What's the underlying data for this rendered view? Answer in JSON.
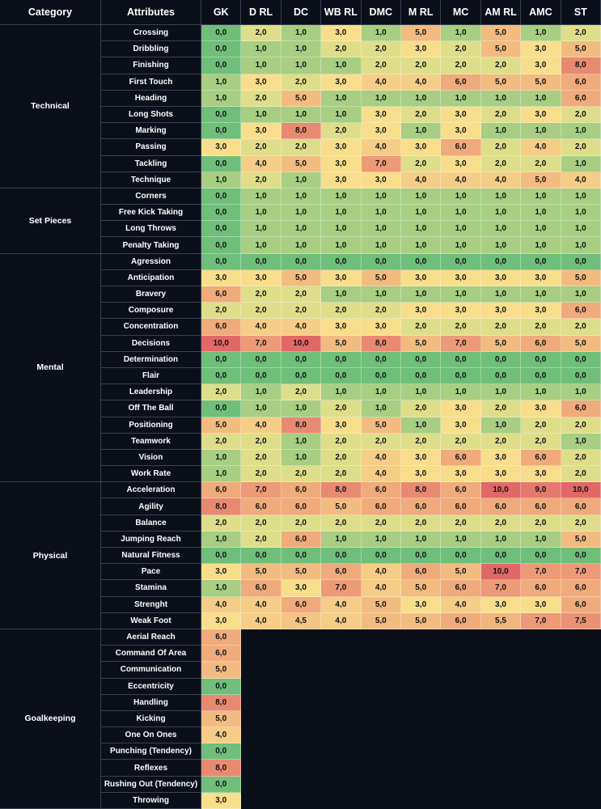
{
  "header": [
    "Category",
    "Attributes",
    "GK",
    "D RL",
    "DC",
    "WB RL",
    "DMC",
    "M RL",
    "MC",
    "AM RL",
    "AMC",
    "ST"
  ],
  "groups": [
    {
      "category": "Technical",
      "rows": [
        {
          "attribute": "Crossing",
          "values": [
            "0,0",
            "2,0",
            "1,0",
            "3,0",
            "1,0",
            "5,0",
            "1,0",
            "5,0",
            "1,0",
            "2,0"
          ]
        },
        {
          "attribute": "Dribbling",
          "values": [
            "0,0",
            "1,0",
            "1,0",
            "2,0",
            "2,0",
            "3,0",
            "2,0",
            "5,0",
            "3,0",
            "5,0"
          ]
        },
        {
          "attribute": "Finishing",
          "values": [
            "0,0",
            "1,0",
            "1,0",
            "1,0",
            "2,0",
            "2,0",
            "2,0",
            "2,0",
            "3,0",
            "8,0"
          ]
        },
        {
          "attribute": "First Touch",
          "values": [
            "1,0",
            "3,0",
            "2,0",
            "3,0",
            "4,0",
            "4,0",
            "6,0",
            "5,0",
            "5,0",
            "6,0"
          ]
        },
        {
          "attribute": "Heading",
          "values": [
            "1,0",
            "2,0",
            "5,0",
            "1,0",
            "1,0",
            "1,0",
            "1,0",
            "1,0",
            "1,0",
            "6,0"
          ]
        },
        {
          "attribute": "Long Shots",
          "values": [
            "0,0",
            "1,0",
            "1,0",
            "1,0",
            "3,0",
            "2,0",
            "3,0",
            "2,0",
            "3,0",
            "2,0"
          ]
        },
        {
          "attribute": "Marking",
          "values": [
            "0,0",
            "3,0",
            "8,0",
            "2,0",
            "3,0",
            "1,0",
            "3,0",
            "1,0",
            "1,0",
            "1,0"
          ]
        },
        {
          "attribute": "Passing",
          "values": [
            "3,0",
            "2,0",
            "2,0",
            "3,0",
            "4,0",
            "3,0",
            "6,0",
            "2,0",
            "4,0",
            "2,0"
          ]
        },
        {
          "attribute": "Tackling",
          "values": [
            "0,0",
            "4,0",
            "5,0",
            "3,0",
            "7,0",
            "2,0",
            "3,0",
            "2,0",
            "2,0",
            "1,0"
          ]
        },
        {
          "attribute": "Technique",
          "values": [
            "1,0",
            "2,0",
            "1,0",
            "3,0",
            "3,0",
            "4,0",
            "4,0",
            "4,0",
            "5,0",
            "4,0"
          ]
        }
      ]
    },
    {
      "category": "Set Pieces",
      "rows": [
        {
          "attribute": "Corners",
          "values": [
            "0,0",
            "1,0",
            "1,0",
            "1,0",
            "1,0",
            "1,0",
            "1,0",
            "1,0",
            "1,0",
            "1,0"
          ]
        },
        {
          "attribute": "Free Kick Taking",
          "values": [
            "0,0",
            "1,0",
            "1,0",
            "1,0",
            "1,0",
            "1,0",
            "1,0",
            "1,0",
            "1,0",
            "1,0"
          ]
        },
        {
          "attribute": "Long Throws",
          "values": [
            "0,0",
            "1,0",
            "1,0",
            "1,0",
            "1,0",
            "1,0",
            "1,0",
            "1,0",
            "1,0",
            "1,0"
          ]
        },
        {
          "attribute": "Penalty Taking",
          "values": [
            "0,0",
            "1,0",
            "1,0",
            "1,0",
            "1,0",
            "1,0",
            "1,0",
            "1,0",
            "1,0",
            "1,0"
          ]
        }
      ]
    },
    {
      "category": "Mental",
      "rows": [
        {
          "attribute": "Agression",
          "values": [
            "0,0",
            "0,0",
            "0,0",
            "0,0",
            "0,0",
            "0,0",
            "0,0",
            "0,0",
            "0,0",
            "0,0"
          ]
        },
        {
          "attribute": "Anticipation",
          "values": [
            "3,0",
            "3,0",
            "5,0",
            "3,0",
            "5,0",
            "3,0",
            "3,0",
            "3,0",
            "3,0",
            "5,0"
          ]
        },
        {
          "attribute": "Bravery",
          "values": [
            "6,0",
            "2,0",
            "2,0",
            "1,0",
            "1,0",
            "1,0",
            "1,0",
            "1,0",
            "1,0",
            "1,0"
          ]
        },
        {
          "attribute": "Composure",
          "values": [
            "2,0",
            "2,0",
            "2,0",
            "2,0",
            "2,0",
            "3,0",
            "3,0",
            "3,0",
            "3,0",
            "6,0"
          ]
        },
        {
          "attribute": "Concentration",
          "values": [
            "6,0",
            "4,0",
            "4,0",
            "3,0",
            "3,0",
            "2,0",
            "2,0",
            "2,0",
            "2,0",
            "2,0"
          ]
        },
        {
          "attribute": "Decisions",
          "values": [
            "10,0",
            "7,0",
            "10,0",
            "5,0",
            "8,0",
            "5,0",
            "7,0",
            "5,0",
            "6,0",
            "5,0"
          ]
        },
        {
          "attribute": "Determination",
          "values": [
            "0,0",
            "0,0",
            "0,0",
            "0,0",
            "0,0",
            "0,0",
            "0,0",
            "0,0",
            "0,0",
            "0,0"
          ]
        },
        {
          "attribute": "Flair",
          "values": [
            "0,0",
            "0,0",
            "0,0",
            "0,0",
            "0,0",
            "0,0",
            "0,0",
            "0,0",
            "0,0",
            "0,0"
          ]
        },
        {
          "attribute": "Leadership",
          "values": [
            "2,0",
            "1,0",
            "2,0",
            "1,0",
            "1,0",
            "1,0",
            "1,0",
            "1,0",
            "1,0",
            "1,0"
          ]
        },
        {
          "attribute": "Off The Ball",
          "values": [
            "0,0",
            "1,0",
            "1,0",
            "2,0",
            "1,0",
            "2,0",
            "3,0",
            "2,0",
            "3,0",
            "6,0"
          ]
        },
        {
          "attribute": "Positioning",
          "values": [
            "5,0",
            "4,0",
            "8,0",
            "3,0",
            "5,0",
            "1,0",
            "3,0",
            "1,0",
            "2,0",
            "2,0"
          ]
        },
        {
          "attribute": "Teamwork",
          "values": [
            "2,0",
            "2,0",
            "1,0",
            "2,0",
            "2,0",
            "2,0",
            "2,0",
            "2,0",
            "2,0",
            "1,0"
          ]
        },
        {
          "attribute": "Vision",
          "values": [
            "1,0",
            "2,0",
            "1,0",
            "2,0",
            "4,0",
            "3,0",
            "6,0",
            "3,0",
            "6,0",
            "2,0"
          ]
        },
        {
          "attribute": "Work Rate",
          "values": [
            "1,0",
            "2,0",
            "2,0",
            "2,0",
            "4,0",
            "3,0",
            "3,0",
            "3,0",
            "3,0",
            "2,0"
          ]
        }
      ]
    },
    {
      "category": "Physical",
      "rows": [
        {
          "attribute": "Acceleration",
          "values": [
            "6,0",
            "7,0",
            "6,0",
            "8,0",
            "6,0",
            "8,0",
            "6,0",
            "10,0",
            "9,0",
            "10,0"
          ]
        },
        {
          "attribute": "Agility",
          "values": [
            "8,0",
            "6,0",
            "6,0",
            "5,0",
            "6,0",
            "6,0",
            "6,0",
            "6,0",
            "6,0",
            "6,0"
          ]
        },
        {
          "attribute": "Balance",
          "values": [
            "2,0",
            "2,0",
            "2,0",
            "2,0",
            "2,0",
            "2,0",
            "2,0",
            "2,0",
            "2,0",
            "2,0"
          ]
        },
        {
          "attribute": "Jumping Reach",
          "values": [
            "1,0",
            "2,0",
            "6,0",
            "1,0",
            "1,0",
            "1,0",
            "1,0",
            "1,0",
            "1,0",
            "5,0"
          ]
        },
        {
          "attribute": "Natural Fitness",
          "values": [
            "0,0",
            "0,0",
            "0,0",
            "0,0",
            "0,0",
            "0,0",
            "0,0",
            "0,0",
            "0,0",
            "0,0"
          ]
        },
        {
          "attribute": "Pace",
          "values": [
            "3,0",
            "5,0",
            "5,0",
            "6,0",
            "4,0",
            "6,0",
            "5,0",
            "10,0",
            "7,0",
            "7,0"
          ]
        },
        {
          "attribute": "Stamina",
          "values": [
            "1,0",
            "6,0",
            "3,0",
            "7,0",
            "4,0",
            "5,0",
            "6,0",
            "7,0",
            "6,0",
            "6,0"
          ]
        },
        {
          "attribute": "Strenght",
          "values": [
            "4,0",
            "4,0",
            "6,0",
            "4,0",
            "5,0",
            "3,0",
            "4,0",
            "3,0",
            "3,0",
            "6,0"
          ]
        },
        {
          "attribute": "Weak Foot",
          "values": [
            "3,0",
            "4,0",
            "4,5",
            "4,0",
            "5,0",
            "5,0",
            "6,0",
            "5,5",
            "7,0",
            "7,5"
          ]
        }
      ]
    },
    {
      "category": "Goalkeeping",
      "rows": [
        {
          "attribute": "Aerial Reach",
          "values": [
            "6,0"
          ]
        },
        {
          "attribute": "Command Of Area",
          "values": [
            "6,0"
          ]
        },
        {
          "attribute": "Communication",
          "values": [
            "5,0"
          ]
        },
        {
          "attribute": "Eccentricity",
          "values": [
            "0,0"
          ]
        },
        {
          "attribute": "Handling",
          "values": [
            "8,0"
          ]
        },
        {
          "attribute": "Kicking",
          "values": [
            "5,0"
          ]
        },
        {
          "attribute": "One On Ones",
          "values": [
            "4,0"
          ]
        },
        {
          "attribute": "Punching (Tendency)",
          "values": [
            "0,0"
          ]
        },
        {
          "attribute": "Reflexes",
          "values": [
            "8,0"
          ]
        },
        {
          "attribute": "Rushing Out (Tendency)",
          "values": [
            "0,0"
          ]
        },
        {
          "attribute": "Throwing",
          "values": [
            "3,0"
          ]
        }
      ]
    }
  ]
}
